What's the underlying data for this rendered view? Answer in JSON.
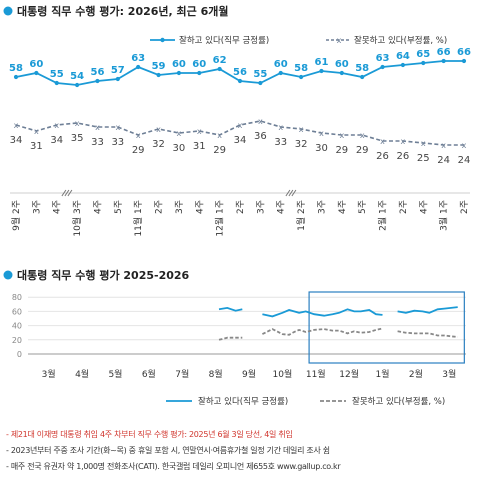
{
  "chart1": {
    "title": "대통령 직무 수행 평가: 2026년, 최근 6개월",
    "legend_approve": "잘하고 있다(직무 긍정률)",
    "legend_disapprove": "잘못하고 있다(부정률, %)",
    "approve_color": "#1a9ad6",
    "disapprove_color": "#6e7f96",
    "bottom_labels": [
      {
        "label": "9월 2주",
        "sub": ""
      },
      {
        "label": "3주",
        "sub": ""
      },
      {
        "label": "4주",
        "sub": ""
      },
      {
        "label": "10월 3주",
        "sub": ""
      },
      {
        "label": "4주",
        "sub": ""
      },
      {
        "label": "5주",
        "sub": ""
      },
      {
        "label": "11월 1주",
        "sub": ""
      },
      {
        "label": "2주",
        "sub": ""
      },
      {
        "label": "3주",
        "sub": ""
      },
      {
        "label": "4주",
        "sub": ""
      },
      {
        "label": "12월 1주",
        "sub": ""
      },
      {
        "label": "2주",
        "sub": ""
      },
      {
        "label": "3주",
        "sub": ""
      },
      {
        "label": "4주",
        "sub": ""
      },
      {
        "label": "1월 2주",
        "sub": ""
      },
      {
        "label": "3주",
        "sub": ""
      },
      {
        "label": "4주",
        "sub": ""
      },
      {
        "label": "5주",
        "sub": ""
      },
      {
        "label": "2월 1주",
        "sub": ""
      },
      {
        "label": "2주",
        "sub": ""
      },
      {
        "label": "4주",
        "sub": ""
      },
      {
        "label": "3월 1주",
        "sub": ""
      },
      {
        "label": "2주",
        "sub": ""
      }
    ],
    "breaks_after_index": [
      2,
      13
    ]
  },
  "chart2": {
    "title": "대통령 직무 수행 평가 2025-2026",
    "y_ticks": [
      "80",
      "60",
      "40",
      "20",
      "0"
    ],
    "months": [
      "3월",
      "4월",
      "5월",
      "6월",
      "7월",
      "8월",
      "9월",
      "10월",
      "11월",
      "12월",
      "1월",
      "2월",
      "3월"
    ],
    "legend_approve": "잘하고 있다(직무 긍정률)",
    "legend_disapprove": "잘못하고 있다(부정률, %)",
    "approve_color": "#1a9ad6",
    "disapprove_color": "#888888",
    "highlight_color": "#2a7fc0"
  },
  "chart_data": [
    {
      "type": "line",
      "title": "대통령 직무 수행 평가: 2026년, 최근 6개월",
      "x": [
        "9월 2주",
        "3주",
        "4주",
        "10월 3주",
        "4주",
        "5주",
        "11월 1주",
        "2주",
        "3주",
        "4주",
        "12월 1주",
        "2주",
        "3주",
        "4주",
        "1월 2주",
        "3주",
        "4주",
        "5주",
        "2월 1주",
        "2주",
        "4주",
        "3월 1주",
        "2주"
      ],
      "series": [
        {
          "name": "잘하고 있다(직무 긍정률)",
          "values": [
            58,
            60,
            55,
            54,
            56,
            57,
            63,
            59,
            60,
            60,
            62,
            56,
            55,
            60,
            58,
            61,
            60,
            58,
            63,
            64,
            65,
            66,
            66
          ]
        },
        {
          "name": "잘못하고 있다(부정률, %)",
          "values": [
            34,
            31,
            34,
            35,
            33,
            33,
            29,
            32,
            30,
            31,
            29,
            34,
            36,
            33,
            32,
            30,
            29,
            29,
            26,
            26,
            25,
            24,
            24
          ]
        }
      ],
      "ylim": [
        0,
        100
      ],
      "legend": "top-right",
      "grid": false
    },
    {
      "type": "line",
      "title": "대통령 직무 수행 평가 2025-2026",
      "x_months": [
        "3월",
        "4월",
        "5월",
        "6월",
        "7월",
        "8월",
        "9월",
        "10월",
        "11월",
        "12월",
        "1월",
        "2월",
        "3월"
      ],
      "ylim": [
        0,
        80
      ],
      "grid": true,
      "legend": "bottom-right",
      "series": [
        {
          "name": "잘하고 있다(직무 긍정률)",
          "points": [
            [
              6.6,
              63
            ],
            [
              6.85,
              65
            ],
            [
              7.1,
              61
            ],
            [
              7.3,
              63
            ],
            [
              7.9,
              56
            ],
            [
              8.2,
              53
            ],
            [
              8.5,
              58
            ],
            [
              8.7,
              62
            ],
            [
              8.85,
              60
            ],
            [
              9.0,
              58
            ],
            [
              9.2,
              60
            ],
            [
              9.45,
              56
            ],
            [
              9.75,
              54
            ],
            [
              10.0,
              56
            ],
            [
              10.2,
              58
            ],
            [
              10.45,
              63
            ],
            [
              10.65,
              60
            ],
            [
              10.85,
              60
            ],
            [
              11.1,
              62
            ],
            [
              11.3,
              56
            ],
            [
              11.5,
              55
            ],
            [
              11.95,
              60
            ],
            [
              12.2,
              58
            ],
            [
              12.45,
              61
            ],
            [
              12.7,
              60
            ],
            [
              12.9,
              58
            ],
            [
              13.15,
              63
            ],
            [
              13.35,
              64
            ],
            [
              13.55,
              65
            ],
            [
              13.75,
              66
            ]
          ]
        },
        {
          "name": "잘못하고 있다(부정률, %)",
          "points": [
            [
              6.6,
              20
            ],
            [
              6.85,
              23
            ],
            [
              7.1,
              23
            ],
            [
              7.3,
              23
            ],
            [
              7.9,
              28
            ],
            [
              8.2,
              35
            ],
            [
              8.5,
              28
            ],
            [
              8.7,
              27
            ],
            [
              8.85,
              31
            ],
            [
              9.0,
              34
            ],
            [
              9.2,
              31
            ],
            [
              9.45,
              34
            ],
            [
              9.75,
              35
            ],
            [
              10.0,
              33
            ],
            [
              10.2,
              33
            ],
            [
              10.45,
              29
            ],
            [
              10.65,
              32
            ],
            [
              10.85,
              30
            ],
            [
              11.1,
              31
            ],
            [
              11.3,
              34
            ],
            [
              11.5,
              36
            ],
            [
              11.95,
              32
            ],
            [
              12.2,
              30
            ],
            [
              12.45,
              29
            ],
            [
              12.7,
              29
            ],
            [
              12.9,
              29
            ],
            [
              13.15,
              26
            ],
            [
              13.35,
              26
            ],
            [
              13.55,
              25
            ],
            [
              13.75,
              24
            ]
          ]
        }
      ]
    }
  ],
  "footnotes": [
    "- 제21대 이재명 대통령 취임 4주 차부터 직무 수행 평가: 2025년 6월 3일 당선, 4일 취임",
    "- 2023년부터 주중 조사 기간(화~목) 중 휴일 포함 시, 연말연시·여름휴가철 일정 기간 데일리 조사 쉼",
    "- 매주 전국 유권자 약 1,000명 전화조사(CATI). 한국갤럽 데일리 오피니언 제655호 www.gallup.co.kr"
  ]
}
